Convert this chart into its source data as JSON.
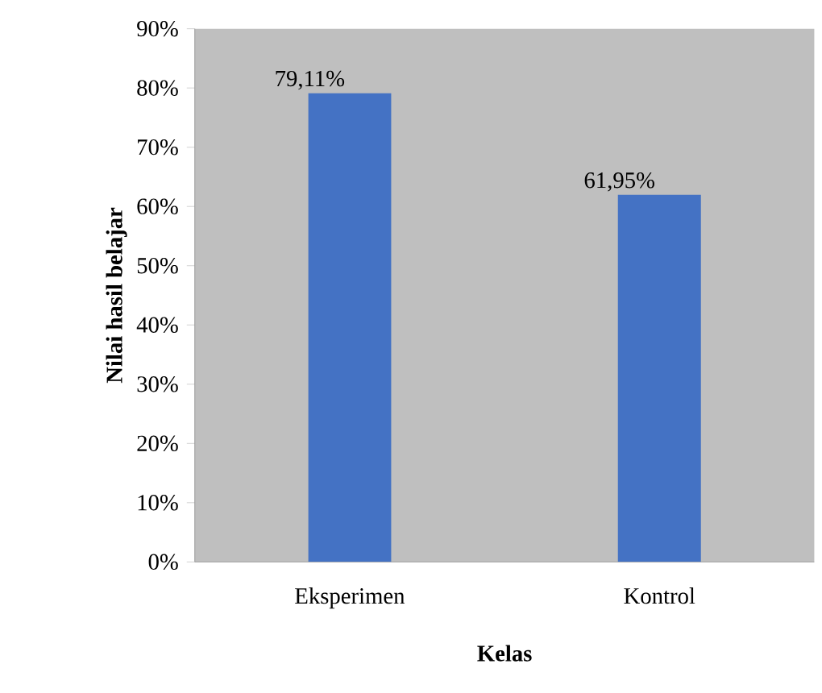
{
  "chart_data": {
    "type": "bar",
    "xlabel": "Kelas",
    "ylabel": "Nilai  hasil  belajar",
    "categories": [
      "Eksperimen",
      "Kontrol"
    ],
    "values": [
      79.11,
      61.95
    ],
    "value_labels": [
      "79,11%",
      "61,95%"
    ],
    "color": "#4472c4",
    "ylim": [
      0,
      90
    ],
    "yticks": [
      {
        "value": 0,
        "label": "0%"
      },
      {
        "value": 10,
        "label": "10%"
      },
      {
        "value": 20,
        "label": "20%"
      },
      {
        "value": 30,
        "label": "30%"
      },
      {
        "value": 40,
        "label": "40%"
      },
      {
        "value": 50,
        "label": "50%"
      },
      {
        "value": 60,
        "label": "60%"
      },
      {
        "value": 70,
        "label": "70%"
      },
      {
        "value": 80,
        "label": "80%"
      },
      {
        "value": 90,
        "label": "90%"
      }
    ],
    "grid": false
  }
}
